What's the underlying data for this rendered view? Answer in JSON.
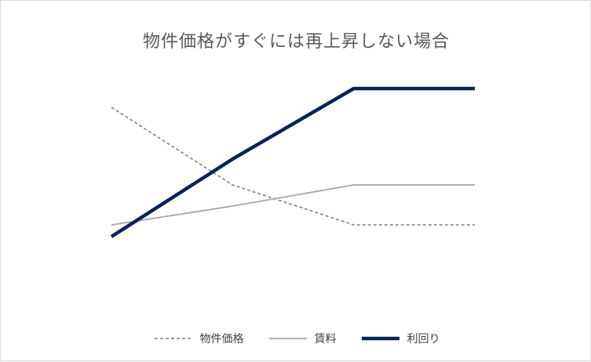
{
  "chart_data": {
    "type": "line",
    "title": "物件価格がすぐには再上昇しない場合",
    "xlabel": "",
    "ylabel": "",
    "categories": [
      "",
      "",
      "",
      ""
    ],
    "ylim": [
      0,
      100
    ],
    "grid": false,
    "legend_position": "bottom",
    "series": [
      {
        "name": "物件価格",
        "values": [
          80,
          47,
          30,
          30
        ],
        "color": "#7f7f7f",
        "style": "dashed"
      },
      {
        "name": "賃料",
        "values": [
          30,
          38,
          47,
          47
        ],
        "color": "#a6a6a6",
        "style": "solid"
      },
      {
        "name": "利回り",
        "values": [
          25,
          58,
          88,
          88
        ],
        "color": "#0b2257",
        "style": "thick"
      }
    ]
  }
}
